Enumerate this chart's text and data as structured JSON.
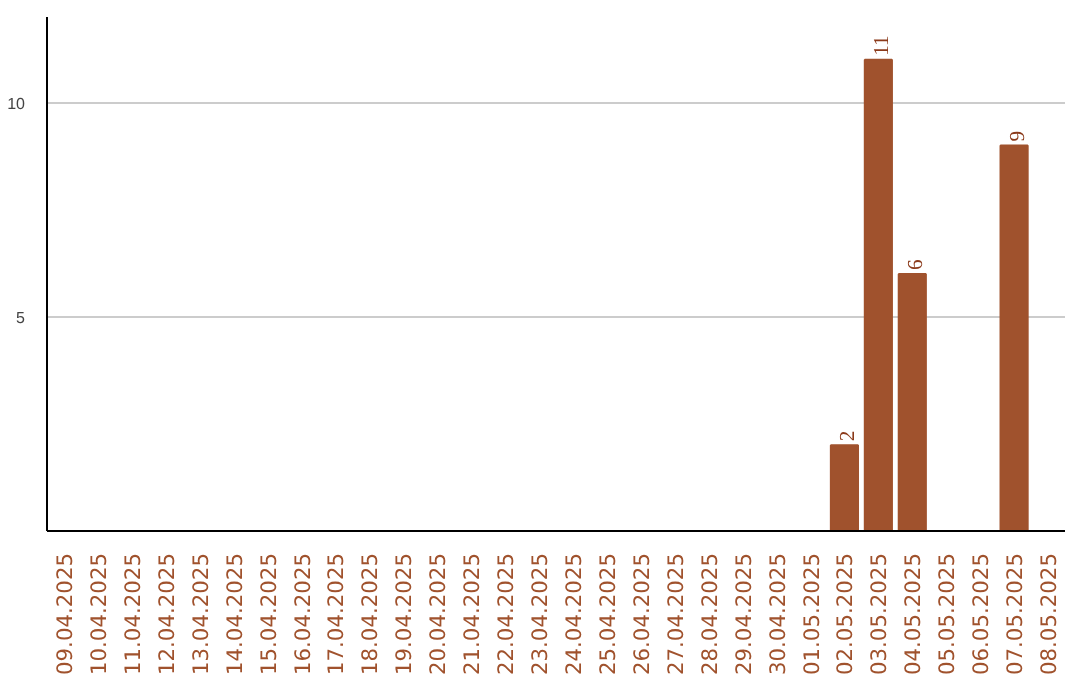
{
  "chart_data": {
    "type": "bar",
    "categories": [
      "09.04.2025",
      "10.04.2025",
      "11.04.2025",
      "12.04.2025",
      "13.04.2025",
      "14.04.2025",
      "15.04.2025",
      "16.04.2025",
      "17.04.2025",
      "18.04.2025",
      "19.04.2025",
      "20.04.2025",
      "21.04.2025",
      "22.04.2025",
      "23.04.2025",
      "24.04.2025",
      "25.04.2025",
      "26.04.2025",
      "27.04.2025",
      "28.04.2025",
      "29.04.2025",
      "30.04.2025",
      "01.05.2025",
      "02.05.2025",
      "03.05.2025",
      "04.05.2025",
      "05.05.2025",
      "06.05.2025",
      "07.05.2025",
      "08.05.2025"
    ],
    "values": [
      0,
      0,
      0,
      0,
      0,
      0,
      0,
      0,
      0,
      0,
      0,
      0,
      0,
      0,
      0,
      0,
      0,
      0,
      0,
      0,
      0,
      0,
      0,
      2,
      11,
      6,
      0,
      0,
      9,
      0
    ],
    "value_labels": [
      null,
      null,
      null,
      null,
      null,
      null,
      null,
      null,
      null,
      null,
      null,
      null,
      null,
      null,
      null,
      null,
      null,
      null,
      null,
      null,
      null,
      null,
      null,
      "2",
      "11",
      "6",
      null,
      null,
      "9",
      null
    ],
    "color": "#a0522d",
    "ylim": [
      0,
      12
    ],
    "yticks": [
      5,
      10
    ],
    "grid": "y"
  }
}
